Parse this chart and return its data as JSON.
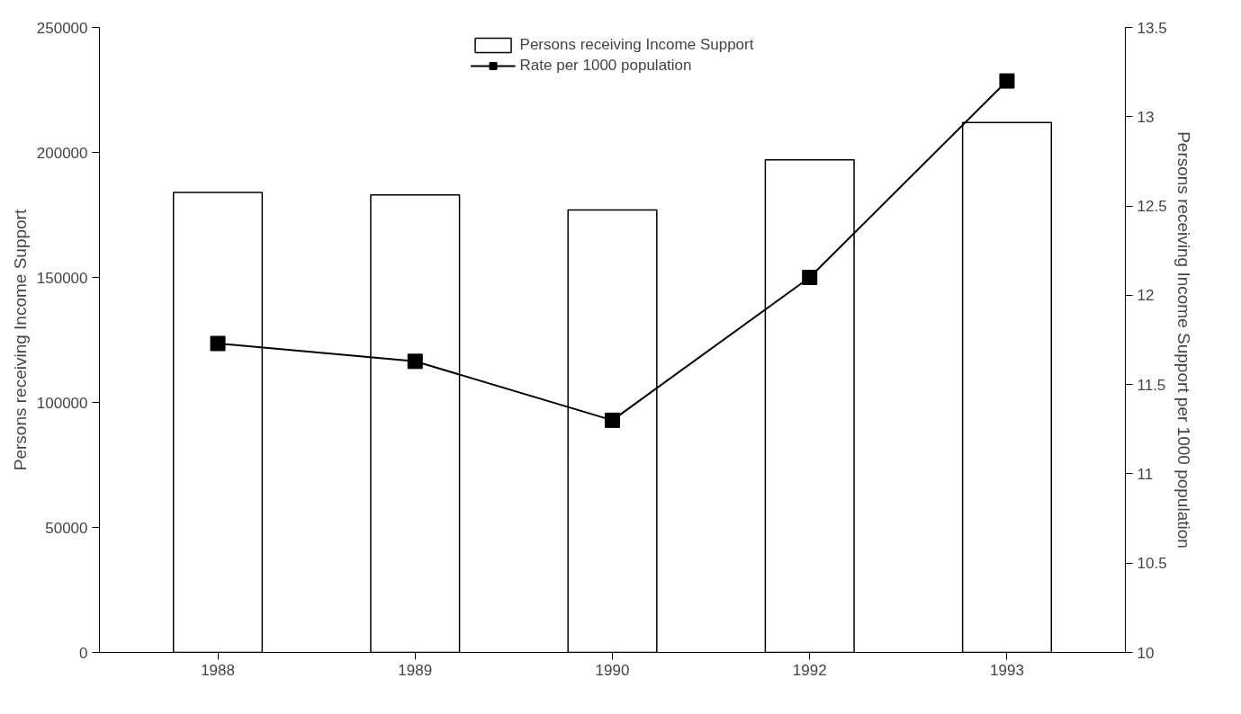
{
  "chart_data": {
    "type": "bar",
    "categories": [
      "1988",
      "1989",
      "1990",
      "1992",
      "1993"
    ],
    "ylabel": "Persons receiving Income Support",
    "y2label": "Persons receiving Income Support per 1000 population",
    "ylim": [
      0,
      250000
    ],
    "yticks": [
      0,
      50000,
      100000,
      150000,
      200000,
      250000
    ],
    "y2lim": [
      10,
      13.5
    ],
    "y2ticks": [
      10,
      10.5,
      11,
      11.5,
      12,
      12.5,
      13,
      13.5
    ],
    "series": [
      {
        "name": "Persons receiving Income Support",
        "color": "#ffffff",
        "values": [
          184000,
          183000,
          177000,
          197000,
          212000
        ]
      },
      {
        "name": "Rate per 1000 population",
        "type": "line",
        "axis": "y2",
        "color": "#000000",
        "marker": "square",
        "values": [
          11.73,
          11.63,
          11.3,
          12.1,
          13.2
        ]
      }
    ],
    "legend": "top",
    "grid": false
  }
}
